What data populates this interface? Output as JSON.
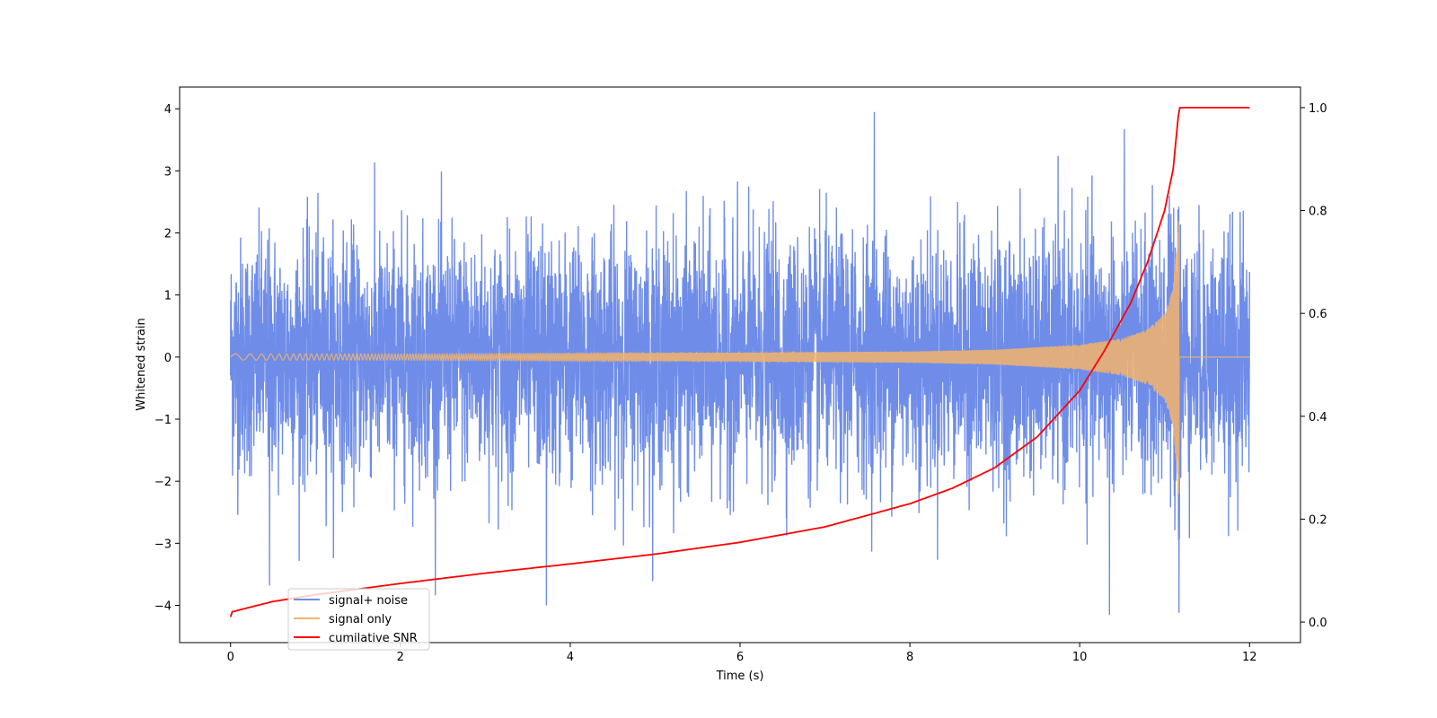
{
  "chart_data": {
    "type": "line",
    "xlabel": "Time (s)",
    "ylabel": "Whitened strain",
    "y2label": "",
    "xlim": [
      -0.6,
      12.6
    ],
    "ylim": [
      -4.6,
      4.35
    ],
    "y2lim": [
      -0.04,
      1.04
    ],
    "x_ticks": [
      0,
      2,
      4,
      6,
      8,
      10,
      12
    ],
    "y_ticks": [
      -4,
      -3,
      -2,
      -1,
      0,
      1,
      2,
      3,
      4
    ],
    "y2_ticks": [
      0.0,
      0.2,
      0.4,
      0.6,
      0.8,
      1.0
    ],
    "x_tick_labels": [
      "0",
      "2",
      "4",
      "6",
      "8",
      "10",
      "12"
    ],
    "y_tick_labels": [
      "−4",
      "−3",
      "−2",
      "−1",
      "0",
      "1",
      "2",
      "3",
      "4"
    ],
    "y2_tick_labels": [
      "0.0",
      "0.2",
      "0.4",
      "0.6",
      "0.8",
      "1.0"
    ],
    "grid": false,
    "legend_position": "lower-left",
    "series": [
      {
        "name": "signal+ noise",
        "color": "#6f8de8",
        "axis": "left",
        "description_values": {
          "x_range": [
            0,
            12
          ],
          "noise_std": 1.0,
          "extremes": [
            {
              "x": 7.58,
              "y": 3.95
            },
            {
              "x": 10.35,
              "y": -4.15
            },
            {
              "x": 11.17,
              "y": -4.12
            },
            {
              "x": 3.72,
              "y": -4.0
            },
            {
              "x": 0.46,
              "y": -3.68
            }
          ]
        }
      },
      {
        "name": "signal only",
        "color": "#f5b36b",
        "axis": "left",
        "envelope": {
          "x": [
            0,
            2,
            4,
            6,
            8,
            9,
            10,
            10.5,
            10.8,
            11.0,
            11.1,
            11.17,
            11.18,
            12
          ],
          "amp": [
            0.05,
            0.05,
            0.06,
            0.07,
            0.09,
            0.12,
            0.2,
            0.3,
            0.45,
            0.7,
            1.1,
            2.3,
            0.0,
            0.0
          ]
        }
      },
      {
        "name": "cumilative SNR",
        "color": "#ff0000",
        "axis": "right",
        "x": [
          0,
          0.02,
          0.5,
          1,
          2,
          3,
          4,
          5,
          6,
          7,
          8,
          8.5,
          9,
          9.5,
          10,
          10.3,
          10.6,
          10.8,
          11.0,
          11.1,
          11.17,
          11.18,
          12
        ],
        "y": [
          0.01,
          0.02,
          0.04,
          0.053,
          0.075,
          0.095,
          0.113,
          0.132,
          0.155,
          0.185,
          0.23,
          0.26,
          0.3,
          0.36,
          0.45,
          0.53,
          0.62,
          0.7,
          0.8,
          0.88,
          1.0,
          1.0,
          1.0
        ]
      }
    ]
  }
}
